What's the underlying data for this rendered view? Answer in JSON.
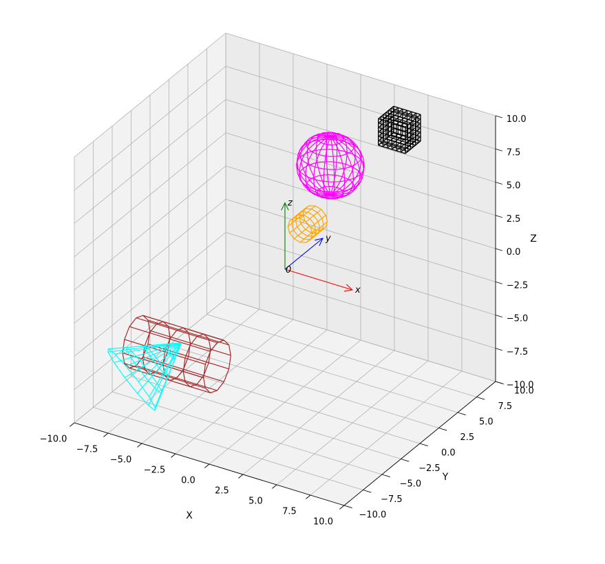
{
  "chart_data": {
    "type": "3d-wireframe",
    "title": "",
    "xlabel": "X",
    "ylabel": "Y",
    "zlabel": "Z",
    "xlim": [
      -10,
      10
    ],
    "ylim": [
      -10,
      10
    ],
    "zlim": [
      -10,
      10
    ],
    "grid": true,
    "ticks": {
      "x": [
        "−10.0",
        "−7.5",
        "−5.0",
        "−2.5",
        "0.0",
        "2.5",
        "5.0",
        "7.5",
        "10.0"
      ],
      "y": [
        "−10.0",
        "−7.5",
        "−5.0",
        "−2.5",
        "0.0",
        "2.5",
        "5.0",
        "7.5",
        "10.0"
      ],
      "z": [
        "−10.0",
        "−7.5",
        "−5.0",
        "−2.5",
        "0.0",
        "2.5",
        "5.0",
        "7.5",
        "10.0"
      ]
    },
    "frame": {
      "origin_label": "0",
      "axes": [
        {
          "label": "x",
          "color": "#ff0000",
          "end": [
            5,
            0,
            0
          ]
        },
        {
          "label": "y",
          "color": "#0000ff",
          "end": [
            0,
            5,
            0
          ]
        },
        {
          "label": "z",
          "color": "#008000",
          "end": [
            0,
            0,
            5
          ]
        }
      ]
    },
    "objects": [
      {
        "shape": "cube",
        "color": "#000000",
        "center": [
          4,
          8,
          8
        ],
        "size": 2
      },
      {
        "shape": "sphere",
        "color": "#ff00ff",
        "center": [
          0,
          6,
          5
        ],
        "radius": 2.2
      },
      {
        "shape": "cylinder",
        "color": "#ffa500",
        "center": [
          0,
          3,
          2
        ],
        "radius": 0.9,
        "length": 2,
        "axis": "y"
      },
      {
        "shape": "cylinder",
        "color": "#a52a2a",
        "center": [
          -5.5,
          -4.5,
          -6
        ],
        "radius": 1.8,
        "length": 6,
        "axis": "x"
      },
      {
        "shape": "cone",
        "color": "#00ffff",
        "apex": [
          -6,
          -3,
          -6
        ],
        "base_center": [
          -8,
          -6,
          -8
        ],
        "radius": 2.5
      }
    ]
  }
}
